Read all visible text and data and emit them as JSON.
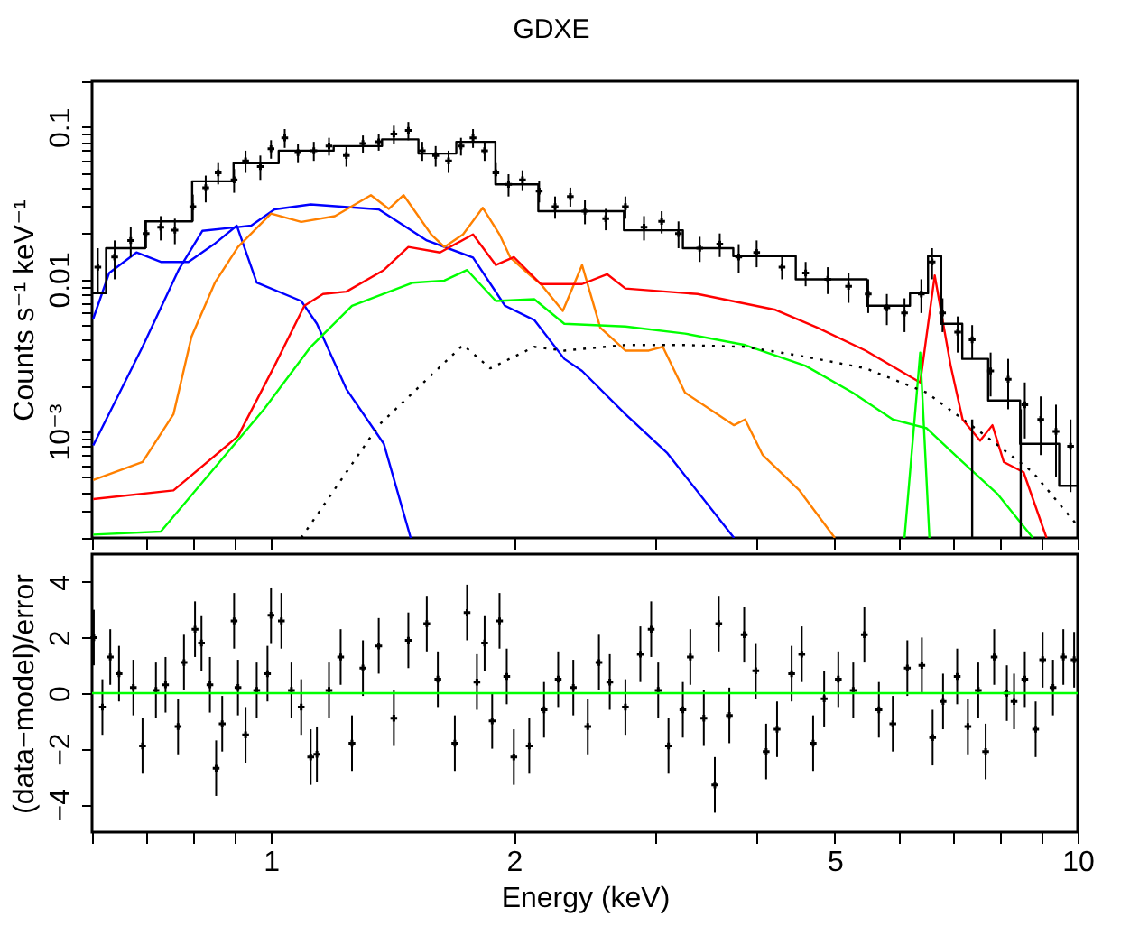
{
  "chart_data": [
    {
      "type": "line",
      "title": "GDXE",
      "ylabel": "Counts s⁻¹ keV⁻¹",
      "log": "xy",
      "tick_labels": "y",
      "xlim": [
        0.6,
        10
      ],
      "xticks": [
        {
          "value": 0.6,
          "label": null
        },
        {
          "value": 0.7,
          "label": null
        },
        {
          "value": 0.8,
          "label": null
        },
        {
          "value": 0.9,
          "label": null
        },
        1,
        2,
        {
          "value": 3,
          "label": null
        },
        {
          "value": 4,
          "label": null
        },
        5,
        {
          "value": 6,
          "label": null
        },
        {
          "value": 7,
          "label": null
        },
        {
          "value": 8,
          "label": null
        },
        {
          "value": 9,
          "label": null
        },
        10
      ],
      "ylim": [
        0.0002,
        0.2
      ],
      "yticks": [
        {
          "value": 0.0002,
          "label": null
        },
        {
          "value": 0.0003,
          "label": null
        },
        {
          "value": 0.0004,
          "label": null
        },
        {
          "value": 0.0005,
          "label": null
        },
        {
          "value": 0.0006,
          "label": null
        },
        {
          "value": 0.0007,
          "label": null
        },
        {
          "value": 0.0008,
          "label": null
        },
        {
          "value": 0.0009,
          "label": null
        },
        {
          "value": 0.001,
          "label": "10⁻³"
        },
        {
          "value": 0.002,
          "label": null
        },
        {
          "value": 0.003,
          "label": null
        },
        {
          "value": 0.004,
          "label": null
        },
        {
          "value": 0.005,
          "label": null
        },
        {
          "value": 0.006,
          "label": null
        },
        {
          "value": 0.007,
          "label": null
        },
        {
          "value": 0.008,
          "label": null
        },
        {
          "value": 0.009,
          "label": null
        },
        0.01,
        {
          "value": 0.02,
          "label": null
        },
        {
          "value": 0.03,
          "label": null
        },
        {
          "value": 0.04,
          "label": null
        },
        {
          "value": 0.05,
          "label": null
        },
        {
          "value": 0.06,
          "label": null
        },
        {
          "value": 0.07,
          "label": null
        },
        {
          "value": 0.08,
          "label": null
        },
        {
          "value": 0.09,
          "label": null
        },
        0.1,
        {
          "value": 0.2,
          "label": null
        }
      ],
      "series": [
        {
          "color": "#0000ff",
          "x": [
            0.602,
            0.63,
            0.681,
            0.73,
            0.79,
            0.85,
            0.907,
            0.96,
            1.09,
            1.14,
            1.24,
            1.38,
            1.49
          ],
          "values": [
            0.0055,
            0.011,
            0.015,
            0.013,
            0.013,
            0.017,
            0.0225,
            0.0095,
            0.0072,
            0.0051,
            0.0019,
            0.00083,
            0.0002
          ]
        },
        {
          "color": "#0000ff",
          "x": [
            0.602,
            0.693,
            0.768,
            0.822,
            0.945,
            1.01,
            1.12,
            1.36,
            1.56,
            1.78,
            1.95,
            2.12,
            2.31,
            2.43,
            2.75,
            3.1,
            3.75
          ],
          "values": [
            0.00081,
            0.0036,
            0.0115,
            0.0208,
            0.0225,
            0.0288,
            0.031,
            0.0288,
            0.018,
            0.0139,
            0.0067,
            0.0054,
            0.003,
            0.0025,
            0.0013,
            0.00072,
            0.0002
          ]
        },
        {
          "color": "#ff8000",
          "x": [
            0.602,
            0.693,
            0.757,
            0.797,
            0.852,
            0.91,
            1.0,
            1.09,
            1.2,
            1.33,
            1.4,
            1.46,
            1.58,
            1.64,
            1.73,
            1.83,
            1.92,
            1.98,
            2.1,
            2.16,
            2.3,
            2.43,
            2.56,
            2.75,
            2.94,
            3.06,
            3.26,
            3.75,
            3.87,
            4.07,
            4.52,
            5.0
          ],
          "values": [
            0.00048,
            0.00063,
            0.0013,
            0.0042,
            0.0095,
            0.0163,
            0.027,
            0.0238,
            0.026,
            0.0357,
            0.029,
            0.0357,
            0.0197,
            0.0163,
            0.0197,
            0.0295,
            0.0197,
            0.0139,
            0.0105,
            0.0093,
            0.0062,
            0.0124,
            0.0048,
            0.0034,
            0.0034,
            0.0036,
            0.0018,
            0.0011,
            0.0012,
            0.0007,
            0.00041,
            0.0002
          ]
        },
        {
          "color": "#ff0000",
          "x": [
            0.602,
            0.757,
            0.91,
            1.01,
            1.1,
            1.16,
            1.24,
            1.38,
            1.48,
            1.62,
            1.78,
            1.9,
            2.0,
            2.16,
            2.43,
            2.61,
            2.75,
            3.38,
            4.22,
            4.76,
            5.46,
            6.38,
            6.65,
            6.96,
            7.2,
            7.57,
            7.84,
            8.1,
            8.57,
            9.15
          ],
          "values": [
            0.00036,
            0.00041,
            0.00093,
            0.0027,
            0.0067,
            0.008,
            0.0083,
            0.0115,
            0.0163,
            0.015,
            0.0197,
            0.0124,
            0.014,
            0.0093,
            0.0093,
            0.0108,
            0.0087,
            0.008,
            0.0063,
            0.0048,
            0.0034,
            0.0021,
            0.0106,
            0.0027,
            0.0012,
            0.00087,
            0.0011,
            0.00063,
            0.00054,
            0.0002
          ]
        },
        {
          "color": "#00ff00",
          "x": [
            0.602,
            0.73,
            0.852,
            0.98,
            1.12,
            1.26,
            1.5,
            1.64,
            1.75,
            1.9,
            2.12,
            2.31,
            2.75,
            3.26,
            3.87,
            4.6,
            5.26,
            5.9,
            6.5,
            7.2,
            7.95,
            8.8
          ],
          "values": [
            0.00021,
            0.00022,
            0.00058,
            0.0014,
            0.0036,
            0.0067,
            0.0095,
            0.0098,
            0.0115,
            0.0072,
            0.0074,
            0.0051,
            0.0049,
            0.0044,
            0.0037,
            0.0027,
            0.0018,
            0.0012,
            0.00105,
            0.00063,
            0.00039,
            0.0002
          ]
        },
        {
          "color": "#00ff00",
          "x": [
            6.1,
            6.38,
            6.55
          ],
          "values": [
            0.0002,
            0.0033,
            0.0002
          ]
        },
        {
          "color": "#000000",
          "line_style": "dotted",
          "x": [
            1.09,
            1.36,
            1.73,
            1.87,
            2.12,
            2.31,
            2.75,
            3.26,
            3.87,
            4.6,
            5.46,
            6.5,
            7.7,
            8.8,
            10
          ],
          "values": [
            0.0002,
            0.0011,
            0.0037,
            0.0026,
            0.0036,
            0.0034,
            0.0037,
            0.0037,
            0.0036,
            0.0031,
            0.0026,
            0.0018,
            0.00093,
            0.00054,
            0.00024
          ]
        },
        {
          "color": "#000000",
          "x": [
            7.4,
            7.4
          ],
          "values": [
            0.0002,
            0.0012
          ]
        },
        {
          "color": "#000000",
          "x": [
            8.5,
            8.5
          ],
          "values": [
            0.0002,
            0.0014
          ]
        },
        {
          "type": "step",
          "color": "#000000",
          "x": [
            0.6,
            0.65,
            0.75,
            0.85,
            0.95,
            1.1,
            1.3,
            1.45,
            1.6,
            1.8,
            2.0,
            2.3,
            2.5,
            3.0,
            3.5,
            4.0,
            5.0,
            6.0,
            6.4,
            6.65,
            6.9,
            7.5,
            8.0,
            9.0,
            10
          ],
          "values": [
            0.0081,
            0.016,
            0.024,
            0.044,
            0.058,
            0.07,
            0.075,
            0.083,
            0.067,
            0.08,
            0.042,
            0.028,
            0.028,
            0.021,
            0.016,
            0.0142,
            0.01,
            0.0067,
            0.0081,
            0.0142,
            0.0051,
            0.003,
            0.0016,
            0.00083,
            0.00044
          ]
        },
        {
          "type": "scatter",
          "marker": "cross",
          "color": "#000000",
          "x": [
            0.61,
            0.64,
            0.67,
            0.7,
            0.73,
            0.76,
            0.8,
            0.83,
            0.86,
            0.9,
            0.93,
            0.97,
            1.0,
            1.04,
            1.08,
            1.13,
            1.18,
            1.24,
            1.3,
            1.36,
            1.42,
            1.48,
            1.54,
            1.6,
            1.66,
            1.72,
            1.78,
            1.84,
            1.9,
            1.97,
            2.05,
            2.15,
            2.25,
            2.35,
            2.45,
            2.6,
            2.75,
            2.9,
            3.05,
            3.2,
            3.4,
            3.6,
            3.8,
            4.0,
            4.3,
            4.6,
            4.9,
            5.2,
            5.5,
            5.8,
            6.1,
            6.4,
            6.6,
            6.8,
            7.1,
            7.4,
            7.8,
            8.2,
            8.6,
            9.0,
            9.4,
            9.8
          ],
          "values": [
            0.012,
            0.014,
            0.018,
            0.02,
            0.022,
            0.021,
            0.03,
            0.04,
            0.05,
            0.045,
            0.06,
            0.055,
            0.072,
            0.085,
            0.068,
            0.07,
            0.075,
            0.065,
            0.078,
            0.08,
            0.09,
            0.095,
            0.07,
            0.065,
            0.06,
            0.075,
            0.085,
            0.07,
            0.05,
            0.042,
            0.045,
            0.038,
            0.03,
            0.035,
            0.028,
            0.025,
            0.03,
            0.022,
            0.024,
            0.02,
            0.016,
            0.017,
            0.014,
            0.015,
            0.012,
            0.011,
            0.01,
            0.009,
            0.008,
            0.0065,
            0.006,
            0.008,
            0.013,
            0.006,
            0.0045,
            0.004,
            0.0025,
            0.0022,
            0.0015,
            0.0012,
            0.001,
            0.0008
          ],
          "errors": [
            0.004,
            0.004,
            0.004,
            0.004,
            0.004,
            0.004,
            0.006,
            0.008,
            0.008,
            0.008,
            0.01,
            0.01,
            0.01,
            0.012,
            0.01,
            0.01,
            0.01,
            0.01,
            0.01,
            0.01,
            0.012,
            0.013,
            0.01,
            0.01,
            0.01,
            0.01,
            0.012,
            0.01,
            0.008,
            0.007,
            0.007,
            0.006,
            0.005,
            0.005,
            0.005,
            0.004,
            0.005,
            0.004,
            0.004,
            0.004,
            0.003,
            0.003,
            0.003,
            0.003,
            0.002,
            0.002,
            0.002,
            0.002,
            0.002,
            0.0015,
            0.0015,
            0.002,
            0.003,
            0.0015,
            0.0012,
            0.001,
            0.0008,
            0.0008,
            0.0006,
            0.0005,
            0.0005,
            0.0004
          ]
        }
      ]
    },
    {
      "type": "scatter",
      "xlabel": "Energy (keV)",
      "ylabel": "(data−model)/error",
      "log": "x",
      "marker": "cross",
      "color": "#000000",
      "xlim": [
        0.6,
        10
      ],
      "xticks": [
        {
          "value": 0.6,
          "label": null
        },
        {
          "value": 0.7,
          "label": null
        },
        {
          "value": 0.8,
          "label": null
        },
        {
          "value": 0.9,
          "label": null
        },
        1,
        2,
        {
          "value": 3,
          "label": null
        },
        {
          "value": 4,
          "label": null
        },
        5,
        {
          "value": 6,
          "label": null
        },
        {
          "value": 7,
          "label": null
        },
        {
          "value": 8,
          "label": null
        },
        {
          "value": 9,
          "label": null
        },
        10
      ],
      "ylim": [
        -5,
        5
      ],
      "yticks": [
        {
          "value": -4,
          "label": "−4"
        },
        {
          "value": -2,
          "label": "−2"
        },
        0,
        2,
        4
      ],
      "ref_lines": [
        {
          "axis": "y",
          "value": 0,
          "color": "#00ff00"
        }
      ],
      "x": [
        0.603,
        0.618,
        0.632,
        0.648,
        0.675,
        0.693,
        0.72,
        0.74,
        0.767,
        0.78,
        0.805,
        0.82,
        0.84,
        0.855,
        0.87,
        0.9,
        0.91,
        0.93,
        0.96,
        0.99,
        1.0,
        1.03,
        1.06,
        1.09,
        1.12,
        1.14,
        1.18,
        1.22,
        1.26,
        1.3,
        1.36,
        1.42,
        1.48,
        1.56,
        1.61,
        1.69,
        1.75,
        1.8,
        1.84,
        1.88,
        1.92,
        1.96,
        2.0,
        2.09,
        2.18,
        2.27,
        2.37,
        2.47,
        2.55,
        2.63,
        2.75,
        2.87,
        2.96,
        3.02,
        3.11,
        3.24,
        3.31,
        3.44,
        3.55,
        3.59,
        3.7,
        3.86,
        3.99,
        4.11,
        4.24,
        4.42,
        4.55,
        4.7,
        4.85,
        5.05,
        5.27,
        5.44,
        5.67,
        5.9,
        6.15,
        6.41,
        6.61,
        6.81,
        7.09,
        7.31,
        7.53,
        7.69,
        7.88,
        8.17,
        8.34,
        8.6,
        8.87,
        9.05,
        9.32,
        9.6,
        9.9
      ],
      "values": [
        2.0,
        -0.5,
        1.3,
        0.7,
        0.2,
        -1.9,
        0.1,
        0.3,
        -1.2,
        1.1,
        2.3,
        1.8,
        0.3,
        -2.7,
        -1.1,
        2.6,
        0.2,
        -1.5,
        0.1,
        0.7,
        2.8,
        2.6,
        0.1,
        -0.5,
        -2.3,
        -2.2,
        0.1,
        1.3,
        -1.8,
        0.9,
        1.7,
        -0.9,
        1.9,
        2.5,
        0.5,
        -1.8,
        2.9,
        0.4,
        1.8,
        -1.0,
        2.6,
        0.6,
        -2.3,
        -1.9,
        -0.6,
        0.5,
        0.2,
        -1.2,
        1.1,
        0.4,
        -0.5,
        1.4,
        2.3,
        0.1,
        -1.9,
        -0.6,
        1.3,
        -0.9,
        -3.3,
        2.5,
        -0.8,
        2.1,
        0.8,
        -2.1,
        -1.3,
        0.7,
        1.4,
        -1.8,
        -0.2,
        0.5,
        0.1,
        2.1,
        -0.6,
        -1.1,
        0.9,
        1.0,
        -1.6,
        -0.3,
        0.6,
        -1.2,
        0.1,
        -2.1,
        1.3,
        0.0,
        -0.3,
        0.5,
        -1.3,
        1.2,
        0.2,
        1.3,
        1.2
      ],
      "errors": [
        1,
        1,
        1,
        1,
        1,
        1,
        1,
        1,
        1,
        1,
        1,
        1,
        1,
        1,
        1,
        1,
        1,
        1,
        1,
        1,
        1,
        1,
        1,
        1,
        1,
        1,
        1,
        1,
        1,
        1,
        1,
        1,
        1,
        1,
        1,
        1,
        1,
        1,
        1,
        1,
        1,
        1,
        1,
        1,
        1,
        1,
        1,
        1,
        1,
        1,
        1,
        1,
        1,
        1,
        1,
        1,
        1,
        1,
        1,
        1,
        1,
        1,
        1,
        1,
        1,
        1,
        1,
        1,
        1,
        1,
        1,
        1,
        1,
        1,
        1,
        1,
        1,
        1,
        1,
        1,
        1,
        1,
        1,
        1,
        1,
        1,
        1,
        1,
        1,
        1,
        1
      ]
    }
  ]
}
